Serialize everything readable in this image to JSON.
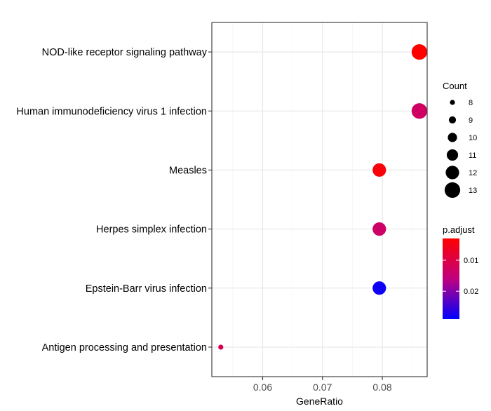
{
  "chart_data": {
    "type": "scatter",
    "xlabel": "GeneRatio",
    "ylabel": "",
    "xlim": [
      0.0515,
      0.0875
    ],
    "xticks": [
      0.06,
      0.07,
      0.08
    ],
    "xtick_labels": [
      "0.06",
      "0.07",
      "0.08"
    ],
    "grid": true,
    "categories": [
      "NOD-like receptor signaling pathway",
      "Human immunodeficiency virus 1 infection",
      "Measles",
      "Herpes simplex infection",
      "Epstein-Barr virus infection",
      "Antigen processing and presentation"
    ],
    "points": [
      {
        "term": "NOD-like receptor signaling pathway",
        "gene_ratio": 0.0862,
        "count": 13,
        "p_adjust": 0.003
      },
      {
        "term": "Human immunodeficiency virus 1 infection",
        "gene_ratio": 0.0862,
        "count": 13,
        "p_adjust": 0.013
      },
      {
        "term": "Measles",
        "gene_ratio": 0.0795,
        "count": 12,
        "p_adjust": 0.004
      },
      {
        "term": "Herpes simplex infection",
        "gene_ratio": 0.0795,
        "count": 12,
        "p_adjust": 0.0135
      },
      {
        "term": "Epstein-Barr virus infection",
        "gene_ratio": 0.0795,
        "count": 12,
        "p_adjust": 0.028
      },
      {
        "term": "Antigen processing and presentation",
        "gene_ratio": 0.053,
        "count": 8,
        "p_adjust": 0.011
      }
    ],
    "legend_placement": "right",
    "size_legend": {
      "title": "Count",
      "values": [
        8,
        9,
        10,
        11,
        12,
        13
      ],
      "labels": [
        "8",
        "9",
        "10",
        "11",
        "12",
        "13"
      ]
    },
    "color_legend": {
      "title": "p.adjust",
      "range": [
        0.003,
        0.029
      ],
      "ticks": [
        0.01,
        0.02
      ],
      "tick_labels": [
        "0.01",
        "0.02"
      ],
      "low_color": "#ff0000",
      "high_color": "#0000ff"
    }
  }
}
